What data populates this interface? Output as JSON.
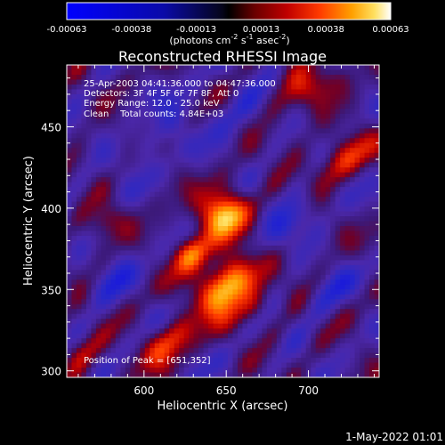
{
  "colorbar": {
    "tick_labels": [
      "-0.00063",
      "-0.00038",
      "-0.00013",
      "0.00013",
      "0.00038",
      "0.00063"
    ],
    "units_text": "(photons cm",
    "units_exp1": "-2",
    "units_mid": " s",
    "units_exp2": "-1",
    "units_end": " asec",
    "units_exp3": "-2",
    "units_close": ")"
  },
  "image": {
    "title": "Reconstructed RHESSI Image",
    "info_lines": [
      "25-Apr-2003 04:41:36.000 to 04:47:36.000",
      "Detectors: 3F 4F 5F 6F 7F 8F, Att 0",
      "Energy Range: 12.0 - 25.0 keV",
      "Clean    Total counts: 4.84E+03"
    ],
    "peak_text": "Position of Peak = [651,352]",
    "xlabel": "Heliocentric X (arcsec)",
    "ylabel": "Heliocentric Y (arcsec)",
    "x_ticks": [
      {
        "value": 600,
        "label": "600"
      },
      {
        "value": 650,
        "label": "650"
      },
      {
        "value": 700,
        "label": "700"
      }
    ],
    "y_ticks": [
      {
        "value": 300,
        "label": "300"
      },
      {
        "value": 350,
        "label": "350"
      },
      {
        "value": 400,
        "label": "400"
      },
      {
        "value": 450,
        "label": "450"
      }
    ],
    "x_range": [
      553,
      743
    ],
    "y_range": [
      296,
      488
    ],
    "peak_position": [
      651,
      352
    ]
  },
  "footer": {
    "timestamp": "1-May-2022 01:01"
  },
  "colors": {
    "background": "#000000",
    "text": "#ffffff",
    "colormap_low": "#0000ff",
    "colormap_mid": "#000000",
    "colormap_high": "#ffffff"
  }
}
